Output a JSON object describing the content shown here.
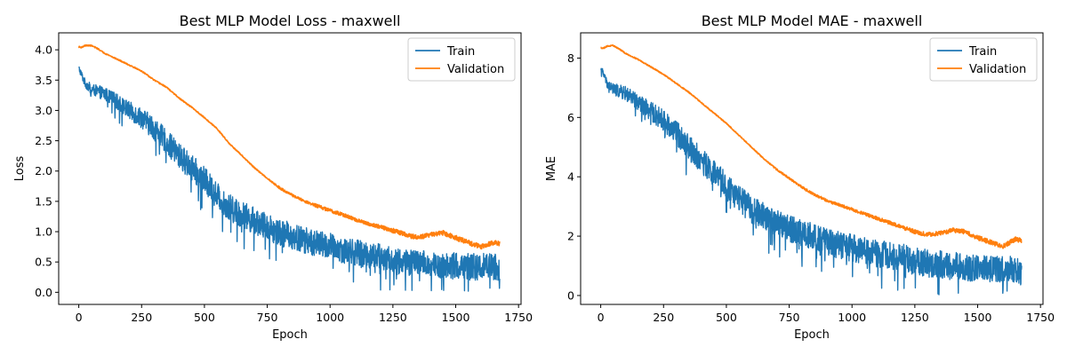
{
  "chart_data": [
    {
      "type": "line",
      "title": "Best MLP Model Loss - maxwell",
      "xlabel": "Epoch",
      "ylabel": "Loss",
      "xlim": [
        -80,
        1760
      ],
      "ylim": [
        -0.2,
        4.28
      ],
      "xticks": [
        0,
        250,
        500,
        750,
        1000,
        1250,
        1500,
        1750
      ],
      "xtick_labels": [
        "0",
        "250",
        "500",
        "750",
        "1000",
        "1250",
        "1500",
        "1750"
      ],
      "yticks": [
        0.0,
        0.5,
        1.0,
        1.5,
        2.0,
        2.5,
        3.0,
        3.5,
        4.0
      ],
      "ytick_labels": [
        "0.0",
        "0.5",
        "1.0",
        "1.5",
        "2.0",
        "2.5",
        "3.0",
        "3.5",
        "4.0"
      ],
      "grid": false,
      "legend_position": "top-right",
      "series": [
        {
          "name": "Train",
          "color": "#1f77b4",
          "x": [
            0,
            25,
            50,
            100,
            150,
            200,
            250,
            300,
            350,
            400,
            450,
            500,
            550,
            600,
            650,
            700,
            750,
            800,
            850,
            900,
            950,
            1000,
            1050,
            1100,
            1150,
            1200,
            1250,
            1300,
            1350,
            1400,
            1450,
            1500,
            1550,
            1600,
            1650,
            1675
          ],
          "y": [
            3.7,
            3.45,
            3.35,
            3.28,
            3.15,
            3.0,
            2.88,
            2.7,
            2.48,
            2.25,
            2.05,
            1.85,
            1.6,
            1.4,
            1.28,
            1.18,
            1.08,
            1.0,
            0.92,
            0.86,
            0.8,
            0.76,
            0.7,
            0.66,
            0.62,
            0.58,
            0.52,
            0.5,
            0.48,
            0.46,
            0.44,
            0.43,
            0.42,
            0.42,
            0.42,
            0.4
          ],
          "noise": [
            0.05,
            0.07,
            0.09,
            0.11,
            0.13,
            0.15,
            0.17,
            0.19,
            0.2,
            0.21,
            0.22,
            0.22,
            0.22,
            0.22,
            0.22,
            0.22,
            0.22,
            0.22,
            0.22,
            0.22,
            0.22,
            0.22,
            0.22,
            0.22,
            0.22,
            0.22,
            0.22,
            0.22,
            0.22,
            0.22,
            0.22,
            0.22,
            0.22,
            0.22,
            0.22,
            0.22
          ]
        },
        {
          "name": "Validation",
          "color": "#ff7f0e",
          "x": [
            0,
            10,
            25,
            50,
            75,
            100,
            150,
            200,
            250,
            300,
            350,
            400,
            450,
            500,
            550,
            600,
            650,
            700,
            750,
            800,
            850,
            900,
            950,
            1000,
            1050,
            1100,
            1150,
            1200,
            1250,
            1300,
            1350,
            1400,
            1450,
            1500,
            1550,
            1600,
            1650,
            1675
          ],
          "y": [
            4.05,
            4.04,
            4.07,
            4.07,
            4.02,
            3.95,
            3.85,
            3.75,
            3.65,
            3.5,
            3.38,
            3.2,
            3.05,
            2.88,
            2.7,
            2.45,
            2.25,
            2.05,
            1.88,
            1.72,
            1.6,
            1.5,
            1.42,
            1.35,
            1.28,
            1.2,
            1.13,
            1.08,
            1.02,
            0.95,
            0.9,
            0.95,
            0.98,
            0.9,
            0.82,
            0.75,
            0.82,
            0.8
          ],
          "noise": [
            0.01,
            0.01,
            0.01,
            0.01,
            0.01,
            0.01,
            0.01,
            0.01,
            0.01,
            0.01,
            0.01,
            0.01,
            0.01,
            0.01,
            0.01,
            0.01,
            0.01,
            0.01,
            0.01,
            0.02,
            0.02,
            0.02,
            0.03,
            0.03,
            0.03,
            0.03,
            0.03,
            0.03,
            0.04,
            0.04,
            0.04,
            0.04,
            0.04,
            0.04,
            0.04,
            0.04,
            0.04,
            0.04
          ]
        }
      ]
    },
    {
      "type": "line",
      "title": "Best MLP Model MAE - maxwell",
      "xlabel": "Epoch",
      "ylabel": "MAE",
      "xlim": [
        -80,
        1760
      ],
      "ylim": [
        -0.3,
        8.85
      ],
      "xticks": [
        0,
        250,
        500,
        750,
        1000,
        1250,
        1500,
        1750
      ],
      "xtick_labels": [
        "0",
        "250",
        "500",
        "750",
        "1000",
        "1250",
        "1500",
        "1750"
      ],
      "yticks": [
        0,
        2,
        4,
        6,
        8
      ],
      "ytick_labels": [
        "0",
        "2",
        "4",
        "6",
        "8"
      ],
      "grid": false,
      "legend_position": "top-right",
      "series": [
        {
          "name": "Train",
          "color": "#1f77b4",
          "x": [
            0,
            25,
            50,
            100,
            150,
            200,
            250,
            300,
            350,
            400,
            450,
            500,
            550,
            600,
            650,
            700,
            750,
            800,
            850,
            900,
            950,
            1000,
            1050,
            1100,
            1150,
            1200,
            1250,
            1300,
            1350,
            1400,
            1450,
            1500,
            1550,
            1600,
            1650,
            1675
          ],
          "y": [
            7.7,
            7.15,
            6.95,
            6.8,
            6.5,
            6.2,
            5.9,
            5.5,
            5.0,
            4.55,
            4.1,
            3.7,
            3.25,
            2.9,
            2.65,
            2.45,
            2.25,
            2.1,
            1.95,
            1.82,
            1.7,
            1.6,
            1.5,
            1.42,
            1.35,
            1.28,
            1.15,
            1.1,
            1.05,
            1.0,
            0.96,
            0.92,
            0.9,
            0.9,
            0.9,
            0.85
          ],
          "noise": [
            0.1,
            0.15,
            0.2,
            0.24,
            0.28,
            0.32,
            0.36,
            0.4,
            0.42,
            0.44,
            0.46,
            0.46,
            0.46,
            0.46,
            0.46,
            0.46,
            0.46,
            0.46,
            0.46,
            0.46,
            0.46,
            0.46,
            0.46,
            0.46,
            0.46,
            0.46,
            0.46,
            0.46,
            0.46,
            0.46,
            0.46,
            0.46,
            0.46,
            0.46,
            0.46,
            0.46
          ]
        },
        {
          "name": "Validation",
          "color": "#ff7f0e",
          "x": [
            0,
            10,
            25,
            50,
            75,
            100,
            150,
            200,
            250,
            300,
            350,
            400,
            450,
            500,
            550,
            600,
            650,
            700,
            750,
            800,
            850,
            900,
            950,
            1000,
            1050,
            1100,
            1150,
            1200,
            1250,
            1300,
            1350,
            1400,
            1450,
            1500,
            1550,
            1600,
            1650,
            1675
          ],
          "y": [
            8.35,
            8.33,
            8.4,
            8.42,
            8.3,
            8.15,
            7.95,
            7.7,
            7.45,
            7.15,
            6.85,
            6.5,
            6.15,
            5.8,
            5.4,
            5.0,
            4.6,
            4.25,
            3.95,
            3.65,
            3.4,
            3.2,
            3.05,
            2.9,
            2.75,
            2.6,
            2.45,
            2.3,
            2.15,
            2.05,
            2.1,
            2.2,
            2.15,
            1.95,
            1.8,
            1.65,
            1.9,
            1.85
          ],
          "noise": [
            0.02,
            0.02,
            0.02,
            0.02,
            0.02,
            0.02,
            0.02,
            0.02,
            0.02,
            0.02,
            0.02,
            0.02,
            0.02,
            0.02,
            0.02,
            0.02,
            0.02,
            0.03,
            0.03,
            0.04,
            0.04,
            0.05,
            0.05,
            0.05,
            0.05,
            0.06,
            0.06,
            0.06,
            0.07,
            0.07,
            0.07,
            0.08,
            0.08,
            0.08,
            0.08,
            0.08,
            0.08,
            0.08
          ]
        }
      ]
    }
  ]
}
